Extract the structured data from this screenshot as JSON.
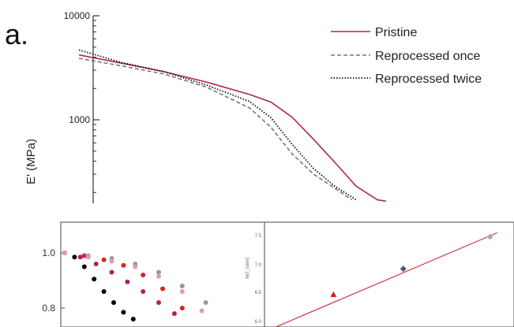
{
  "panel_label": "a.",
  "chart_data": [
    {
      "type": "line",
      "title": "",
      "xlabel": "",
      "ylabel": "E' (MPa)",
      "yscale": "log",
      "yticks": [
        "10000",
        "1000"
      ],
      "ylim": [
        160,
        10000
      ],
      "xlim": [
        0,
        100
      ],
      "legend_position": "top-right",
      "series": [
        {
          "name": "Pristine",
          "color": "#b0264a",
          "style": "solid",
          "x": [
            0,
            10,
            20,
            30,
            40,
            45,
            50,
            55,
            60,
            65,
            70,
            72
          ],
          "y": [
            4200,
            3500,
            2900,
            2300,
            1750,
            1480,
            1060,
            650,
            390,
            230,
            170,
            165
          ]
        },
        {
          "name": "Reprocessed once",
          "color": "#777777",
          "style": "dashed",
          "x": [
            0,
            10,
            20,
            30,
            40,
            45,
            50,
            55,
            60,
            64
          ],
          "y": [
            3900,
            3300,
            2750,
            2050,
            1300,
            850,
            470,
            300,
            220,
            170
          ]
        },
        {
          "name": "Reprocessed twice",
          "color": "#111111",
          "style": "dotted",
          "x": [
            0,
            10,
            20,
            30,
            40,
            45,
            50,
            55,
            60,
            65
          ],
          "y": [
            4700,
            3550,
            2900,
            2150,
            1500,
            1050,
            580,
            340,
            230,
            170
          ]
        }
      ]
    },
    {
      "type": "scatter",
      "title": "",
      "xlabel": "",
      "ylabel": "",
      "yticks": [
        "1.0",
        "0.8"
      ],
      "ylim": [
        0.75,
        1.05
      ],
      "xlim": [
        0,
        100
      ],
      "series": [
        {
          "name": "",
          "color": "#000000",
          "x": [
            0,
            5,
            10,
            15,
            20,
            25,
            30,
            35
          ],
          "y": [
            1.0,
            0.985,
            0.95,
            0.905,
            0.86,
            0.82,
            0.785,
            0.76
          ]
        },
        {
          "name": "",
          "color": "#b02060",
          "x": [
            0,
            8,
            16,
            24,
            32,
            40,
            48,
            56
          ],
          "y": [
            1.0,
            0.985,
            0.96,
            0.93,
            0.895,
            0.86,
            0.82,
            0.78
          ]
        },
        {
          "name": "",
          "color": "#e02020",
          "x": [
            0,
            10,
            20,
            30,
            40,
            50,
            60
          ],
          "y": [
            1.0,
            0.99,
            0.975,
            0.955,
            0.92,
            0.87,
            0.8
          ]
        },
        {
          "name": "",
          "color": "#999999",
          "x": [
            0,
            12,
            24,
            36,
            48,
            60,
            72
          ],
          "y": [
            1.0,
            0.99,
            0.98,
            0.96,
            0.93,
            0.88,
            0.82
          ]
        },
        {
          "name": "",
          "color": "#d8a0b0",
          "x": [
            0,
            12,
            24,
            36,
            48,
            60,
            70
          ],
          "y": [
            1.0,
            0.985,
            0.97,
            0.95,
            0.915,
            0.86,
            0.79
          ]
        }
      ]
    },
    {
      "type": "scatter",
      "title": "",
      "xlabel": "",
      "ylabel": "ln(τ_conv)",
      "yticks": [
        "7.5",
        "7.0",
        "6.5",
        "6.0"
      ],
      "ylim": [
        5.8,
        7.6
      ],
      "xlim": [
        0,
        100
      ],
      "series": [
        {
          "name": "",
          "color": "#cc2222",
          "marker": "triangle",
          "x": [
            27
          ],
          "y": [
            6.47
          ]
        },
        {
          "name": "",
          "color": "#555577",
          "marker": "diamond",
          "x": [
            56
          ],
          "y": [
            6.92
          ]
        },
        {
          "name": "",
          "color": "#aaaaaa",
          "marker": "diamond",
          "x": [
            92
          ],
          "y": [
            7.48
          ]
        }
      ],
      "fit_line": {
        "color": "#cc3344",
        "x": [
          0,
          95
        ],
        "y": [
          5.85,
          7.55
        ]
      }
    }
  ]
}
